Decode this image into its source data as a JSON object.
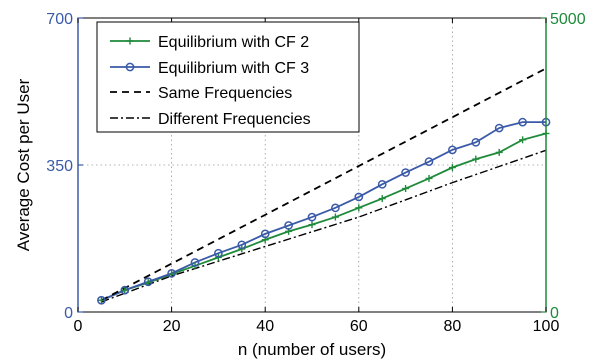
{
  "chart_data": {
    "type": "line",
    "xlabel": "n (number of users)",
    "ylabel": "Average Cost per User",
    "xlim": [
      0,
      100
    ],
    "ylim_left": [
      0,
      700
    ],
    "ylim_right": [
      0,
      5000
    ],
    "x_ticks": [
      "0",
      "20",
      "40",
      "60",
      "80",
      "100"
    ],
    "y_ticks_left": [
      "0",
      "350",
      "700"
    ],
    "y_ticks_right": [
      "0",
      "5000"
    ],
    "grid": true,
    "legend_position": "top-left",
    "colors": {
      "left_axis": "#3a5aa8",
      "right_axis": "#1e8a3a",
      "cf2": "#1e8a3a",
      "cf3": "#3a5aa8",
      "reference": "#000000"
    },
    "series": [
      {
        "name": "Equilibrium with CF 2",
        "key": "cf2",
        "axis": "left",
        "style": "solid-plus",
        "x": [
          5,
          10,
          15,
          20,
          25,
          30,
          35,
          40,
          45,
          50,
          55,
          60,
          65,
          70,
          75,
          80,
          85,
          90,
          95,
          100
        ],
        "y": [
          28,
          52,
          70,
          90,
          110,
          130,
          150,
          172,
          192,
          208,
          226,
          248,
          270,
          294,
          318,
          344,
          364,
          380,
          410,
          425
        ]
      },
      {
        "name": "Equilibrium with CF 3",
        "key": "cf3",
        "axis": "left",
        "style": "solid-circle",
        "x": [
          5,
          10,
          15,
          20,
          25,
          30,
          35,
          40,
          45,
          50,
          55,
          60,
          65,
          70,
          75,
          80,
          85,
          90,
          95,
          100
        ],
        "y": [
          28,
          52,
          72,
          92,
          118,
          140,
          160,
          186,
          206,
          226,
          248,
          274,
          304,
          332,
          358,
          386,
          404,
          438,
          452,
          452
        ]
      },
      {
        "name": "Same Frequencies",
        "key": "same",
        "axis": "left",
        "style": "dashed",
        "x": [
          5,
          100
        ],
        "y": [
          28,
          580
        ]
      },
      {
        "name": "Different Frequencies",
        "key": "diff",
        "axis": "left",
        "style": "dashdot",
        "x": [
          5,
          20,
          40,
          60,
          80,
          100
        ],
        "y": [
          24,
          86,
          156,
          226,
          308,
          385
        ]
      }
    ]
  }
}
